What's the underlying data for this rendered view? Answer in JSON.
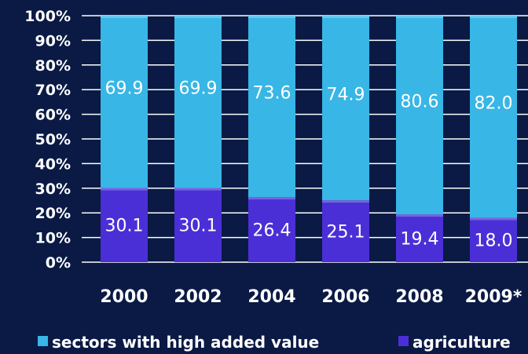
{
  "chart_data": {
    "type": "bar",
    "stacked": true,
    "percent_stacked": true,
    "categories": [
      "2000",
      "2002",
      "2004",
      "2006",
      "2008",
      "2009*"
    ],
    "series": [
      {
        "name": "agriculture",
        "values": [
          30.1,
          30.1,
          26.4,
          25.1,
          19.4,
          18.0
        ],
        "color": "#4b2fd6"
      },
      {
        "name": "sectors with high added value",
        "values": [
          69.9,
          69.9,
          73.6,
          74.9,
          80.6,
          82.0
        ],
        "color": "#38b6e6"
      }
    ],
    "value_labels": {
      "agriculture": [
        "30.1",
        "30.1",
        "26.4",
        "25.1",
        "19.4",
        "18.0"
      ],
      "sectors with high added value": [
        "69.9",
        "69.9",
        "73.6",
        "74.9",
        "80.6",
        "82.0"
      ]
    },
    "yticks": [
      "0%",
      "10%",
      "20%",
      "30%",
      "40%",
      "50%",
      "60%",
      "70%",
      "80%",
      "90%",
      "100%"
    ],
    "ylim": [
      0,
      100
    ],
    "grid": true,
    "legend_placement": "bottom",
    "legend": [
      "sectors with high added value",
      "agriculture"
    ],
    "background": "#0a1a45"
  }
}
